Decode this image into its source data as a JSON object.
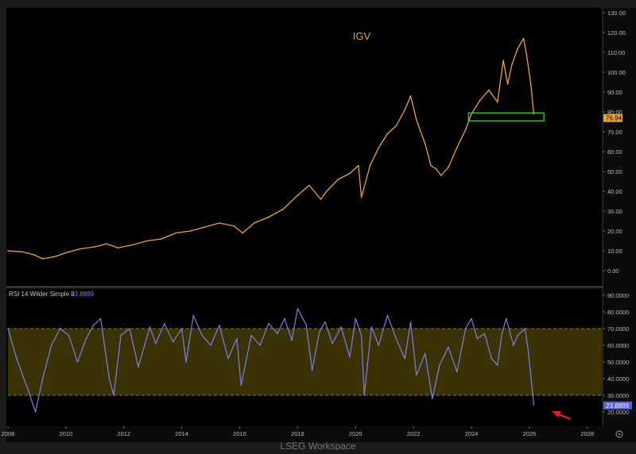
{
  "chart_data": [
    {
      "type": "line",
      "title": "IGV",
      "xlim": [
        2008,
        2028.5
      ],
      "ylim": [
        -5,
        130
      ],
      "y_ticks": [
        "130.00",
        "120.00",
        "110.00",
        "100.00",
        "90.00",
        "80.00",
        "70.00",
        "60.00",
        "50.00",
        "40.00",
        "30.00",
        "20.00",
        "10.00",
        "0.00"
      ],
      "last_value_label": "76.94",
      "last_value": 76.94,
      "highlight_box": {
        "x": [
          2023.9,
          2026.5
        ],
        "y": [
          75.5,
          79.5
        ]
      },
      "series": [
        {
          "color": "#f0a040",
          "x": [
            2008.0,
            2008.5,
            2008.9,
            2009.2,
            2009.6,
            2010.0,
            2010.5,
            2011.0,
            2011.4,
            2011.8,
            2012.3,
            2012.8,
            2013.3,
            2013.8,
            2014.3,
            2014.8,
            2015.3,
            2015.8,
            2016.1,
            2016.5,
            2017.0,
            2017.5,
            2018.0,
            2018.4,
            2018.8,
            2019.0,
            2019.4,
            2019.8,
            2020.1,
            2020.2,
            2020.5,
            2020.8,
            2021.1,
            2021.4,
            2021.7,
            2021.9,
            2022.1,
            2022.4,
            2022.6,
            2022.8,
            2022.95,
            2023.2,
            2023.5,
            2023.8,
            2024.0,
            2024.3,
            2024.6,
            2024.9,
            2025.1,
            2025.25,
            2025.4,
            2025.6,
            2025.8,
            2025.9,
            2026.05,
            2026.15
          ],
          "y": [
            10,
            9.5,
            8,
            6,
            7,
            9,
            11,
            12,
            13.5,
            11.5,
            13,
            15,
            16,
            19,
            20,
            22,
            24,
            22.5,
            19,
            24,
            27,
            31,
            38,
            43,
            36,
            40,
            46,
            49,
            53,
            37,
            53,
            62,
            69,
            73,
            81,
            88,
            76,
            64,
            53,
            51,
            48,
            52,
            62,
            71,
            79,
            86,
            91,
            85,
            106,
            94,
            104,
            112,
            117,
            109,
            94,
            79
          ]
        }
      ]
    },
    {
      "type": "line",
      "title": "RSI 14 Wilder Simple 9",
      "last_value_label": "23.8899",
      "last_value": 23.8899,
      "xlim": [
        2008,
        2028.5
      ],
      "ylim": [
        15,
        90
      ],
      "y_ticks": [
        "90.0000",
        "80.0000",
        "70.0000",
        "60.0000",
        "50.0000",
        "40.0000",
        "30.0000",
        "20.0000"
      ],
      "bands": [
        30,
        70
      ],
      "x_ticks": [
        "2008",
        "2010",
        "2012",
        "2014",
        "2016",
        "2018",
        "2020",
        "2022",
        "2024",
        "2026",
        "2028"
      ],
      "series": [
        {
          "color": "#7b80e0",
          "x": [
            2008.0,
            2008.3,
            2008.7,
            2008.95,
            2009.2,
            2009.5,
            2009.8,
            2010.1,
            2010.4,
            2010.7,
            2010.95,
            2011.2,
            2011.5,
            2011.65,
            2011.9,
            2012.2,
            2012.5,
            2012.9,
            2013.1,
            2013.4,
            2013.7,
            2014.0,
            2014.15,
            2014.4,
            2014.7,
            2015.0,
            2015.3,
            2015.6,
            2015.9,
            2016.05,
            2016.4,
            2016.7,
            2017.0,
            2017.3,
            2017.55,
            2017.8,
            2018.0,
            2018.3,
            2018.5,
            2018.75,
            2018.95,
            2019.2,
            2019.5,
            2019.8,
            2020.0,
            2020.2,
            2020.3,
            2020.55,
            2020.8,
            2021.1,
            2021.4,
            2021.7,
            2021.9,
            2022.1,
            2022.4,
            2022.65,
            2022.9,
            2023.2,
            2023.5,
            2023.8,
            2024.0,
            2024.2,
            2024.45,
            2024.7,
            2024.9,
            2025.05,
            2025.2,
            2025.45,
            2025.6,
            2025.85,
            2025.95,
            2026.05,
            2026.15
          ],
          "y": [
            70,
            52,
            33,
            20,
            40,
            60,
            70,
            66,
            50,
            64,
            72,
            76,
            40,
            30,
            66,
            70,
            47,
            71,
            61,
            73,
            62,
            70,
            50,
            78,
            66,
            60,
            72,
            52,
            64,
            36,
            66,
            60,
            73,
            67,
            76,
            63,
            82,
            72,
            45,
            68,
            74,
            61,
            71,
            53,
            76,
            66,
            30,
            71,
            60,
            78,
            64,
            52,
            74,
            42,
            55,
            28,
            48,
            59,
            44,
            70,
            76,
            64,
            67,
            52,
            48,
            67,
            76,
            60,
            66,
            70,
            58,
            42,
            24
          ]
        }
      ]
    }
  ],
  "footer": {
    "brand": "LSEG Workspace"
  }
}
